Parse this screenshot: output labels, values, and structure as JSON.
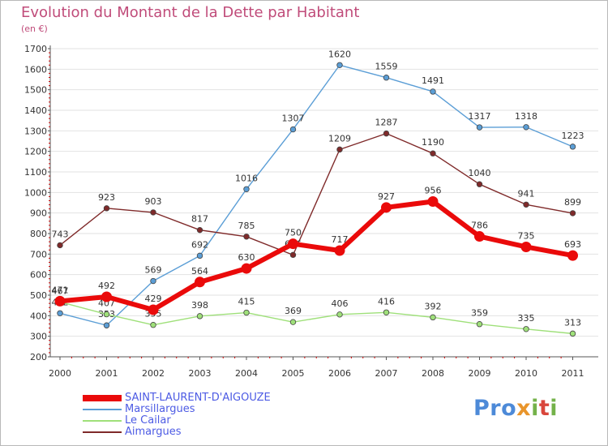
{
  "header": {
    "title": "Evolution du Montant de la Dette par Habitant",
    "subtitle": "(en €)"
  },
  "brand": {
    "logo_text": "Proxiti"
  },
  "colors": {
    "title": "#c04c7a",
    "legend_text": "#4d5be4",
    "axis": "#555555",
    "grid": "#e2e2e2"
  },
  "chart_data": {
    "type": "line",
    "title": "Evolution du Montant de la Dette par Habitant",
    "subtitle": "(en €)",
    "xlabel": "",
    "ylabel": "",
    "x": [
      "2000",
      "2001",
      "2002",
      "2003",
      "2004",
      "2005",
      "2006",
      "2007",
      "2008",
      "2009",
      "2010",
      "2011"
    ],
    "ylim": [
      200,
      1700
    ],
    "yticks": [
      200,
      300,
      400,
      500,
      600,
      700,
      800,
      900,
      1000,
      1100,
      1200,
      1300,
      1400,
      1500,
      1600,
      1700
    ],
    "grid": "horizontal",
    "legend_position": "bottom-left",
    "series": [
      {
        "name": "SAINT-LAURENT-D'AIGOUZE",
        "color": "#ea0a0a",
        "emphasis": true,
        "values": [
          471,
          492,
          429,
          564,
          630,
          750,
          717,
          927,
          956,
          786,
          735,
          693
        ]
      },
      {
        "name": "Marsillargues",
        "color": "#5b9ed6",
        "values": [
          412,
          353,
          569,
          692,
          1016,
          1307,
          1620,
          1559,
          1491,
          1317,
          1318,
          1223
        ]
      },
      {
        "name": "Le Cailar",
        "color": "#9fe07a",
        "values": [
          467,
          407,
          355,
          398,
          415,
          369,
          406,
          416,
          392,
          359,
          335,
          313
        ]
      },
      {
        "name": "Aimargues",
        "color": "#7f2a2a",
        "values": [
          743,
          923,
          903,
          817,
          785,
          696,
          1209,
          1287,
          1190,
          1040,
          941,
          899
        ]
      }
    ]
  }
}
